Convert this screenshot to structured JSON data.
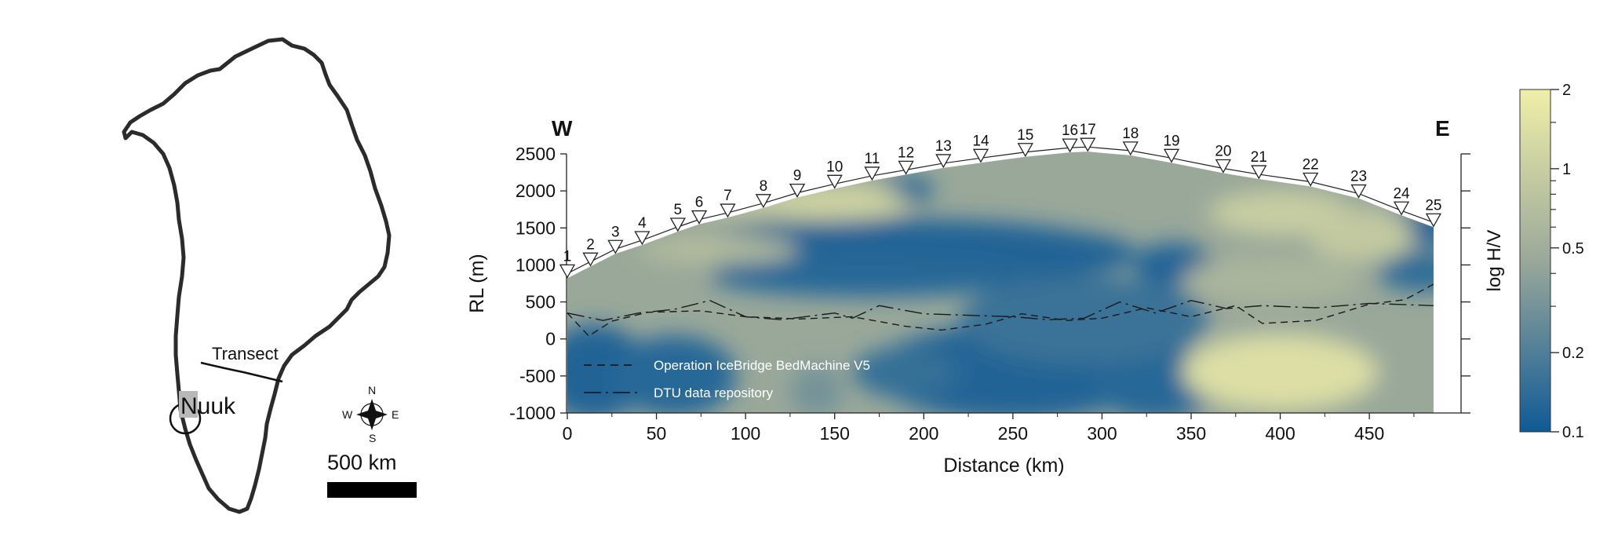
{
  "map": {
    "transect_label": "Transect",
    "city_label": "Nuuk",
    "scale_label": "500 km",
    "compass": {
      "n": "N",
      "s": "S",
      "e": "E",
      "w": "W"
    }
  },
  "chart_data": {
    "type": "heatmap",
    "xlabel": "Distance (km)",
    "ylabel": "RL (m)",
    "xlim": [
      0,
      490
    ],
    "ylim": [
      -1000,
      2500
    ],
    "xticks": [
      0,
      50,
      100,
      150,
      200,
      250,
      300,
      350,
      400,
      450
    ],
    "yticks": [
      2500,
      2000,
      1500,
      1000,
      500,
      0,
      -500,
      -1000
    ],
    "direction_left": "W",
    "direction_right": "E",
    "colorbar": {
      "label": "log H/V",
      "scale": "log",
      "range": [
        0.1,
        2
      ],
      "ticks": [
        2,
        1,
        0.5,
        0.2,
        0.1
      ],
      "colors": [
        "#0f5a96",
        "#9aa89a",
        "#f0efa8"
      ]
    },
    "stations": [
      {
        "label": "1",
        "x": 0,
        "z": 820
      },
      {
        "label": "2",
        "x": 13,
        "z": 980
      },
      {
        "label": "3",
        "x": 27,
        "z": 1150
      },
      {
        "label": "4",
        "x": 42,
        "z": 1270
      },
      {
        "label": "5",
        "x": 62,
        "z": 1450
      },
      {
        "label": "6",
        "x": 74,
        "z": 1550
      },
      {
        "label": "7",
        "x": 90,
        "z": 1640
      },
      {
        "label": "8",
        "x": 110,
        "z": 1770
      },
      {
        "label": "9",
        "x": 129,
        "z": 1910
      },
      {
        "label": "10",
        "x": 150,
        "z": 2030
      },
      {
        "label": "11",
        "x": 171,
        "z": 2140
      },
      {
        "label": "12",
        "x": 190,
        "z": 2220
      },
      {
        "label": "13",
        "x": 211,
        "z": 2310
      },
      {
        "label": "14",
        "x": 232,
        "z": 2380
      },
      {
        "label": "15",
        "x": 257,
        "z": 2460
      },
      {
        "label": "16",
        "x": 282,
        "z": 2520
      },
      {
        "label": "17",
        "x": 292,
        "z": 2530
      },
      {
        "label": "18",
        "x": 316,
        "z": 2480
      },
      {
        "label": "19",
        "x": 339,
        "z": 2380
      },
      {
        "label": "20",
        "x": 368,
        "z": 2240
      },
      {
        "label": "21",
        "x": 388,
        "z": 2160
      },
      {
        "label": "22",
        "x": 417,
        "z": 2060
      },
      {
        "label": "23",
        "x": 444,
        "z": 1900
      },
      {
        "label": "24",
        "x": 468,
        "z": 1670
      },
      {
        "label": "25",
        "x": 486,
        "z": 1510
      }
    ],
    "series": [
      {
        "name": "Operation IceBridge BedMachine V5",
        "style": "dashed",
        "x": [
          0,
          12,
          25,
          45,
          75,
          100,
          130,
          160,
          190,
          210,
          235,
          255,
          280,
          300,
          325,
          350,
          375,
          390,
          420,
          450,
          470,
          486
        ],
        "y": [
          350,
          40,
          240,
          360,
          380,
          300,
          270,
          300,
          170,
          120,
          200,
          340,
          250,
          280,
          420,
          300,
          450,
          210,
          250,
          470,
          530,
          740
        ]
      },
      {
        "name": "DTU data repository",
        "style": "dash-dot",
        "x": [
          0,
          20,
          40,
          60,
          80,
          100,
          120,
          150,
          160,
          175,
          200,
          225,
          250,
          270,
          290,
          310,
          330,
          350,
          370,
          390,
          420,
          450,
          486
        ],
        "y": [
          350,
          250,
          350,
          400,
          520,
          300,
          260,
          350,
          280,
          450,
          340,
          320,
          300,
          260,
          280,
          500,
          350,
          520,
          410,
          450,
          420,
          480,
          450
        ]
      }
    ],
    "anomalies": [
      {
        "x": 190,
        "z": 1200,
        "rx": 120,
        "rz": 420,
        "value": 0.12
      },
      {
        "x": 250,
        "z": 1150,
        "rx": 70,
        "rz": 350,
        "value": 0.12
      },
      {
        "x": 170,
        "z": 850,
        "rx": 90,
        "rz": 280,
        "value": 0.13
      },
      {
        "x": 190,
        "z": 2020,
        "rx": 16,
        "rz": 170,
        "value": 0.13
      },
      {
        "x": 340,
        "z": 1000,
        "rx": 22,
        "rz": 300,
        "value": 0.12
      },
      {
        "x": 475,
        "z": 1500,
        "rx": 28,
        "rz": 260,
        "value": 0.12
      },
      {
        "x": 480,
        "z": 900,
        "rx": 25,
        "rz": 260,
        "value": 0.14
      },
      {
        "x": 15,
        "z": -450,
        "rx": 30,
        "rz": 650,
        "value": 0.12
      },
      {
        "x": 60,
        "z": -500,
        "rx": 35,
        "rz": 550,
        "value": 0.13
      },
      {
        "x": 250,
        "z": -450,
        "rx": 80,
        "rz": 650,
        "value": 0.12
      },
      {
        "x": 330,
        "z": -600,
        "rx": 35,
        "rz": 500,
        "value": 0.13
      },
      {
        "x": 190,
        "z": -450,
        "rx": 30,
        "rz": 350,
        "value": 0.15
      },
      {
        "x": 290,
        "z": 250,
        "rx": 70,
        "rz": 600,
        "value": 0.16
      },
      {
        "x": 140,
        "z": -700,
        "rx": 15,
        "rz": 350,
        "value": 0.3
      },
      {
        "x": 100,
        "z": 1900,
        "rx": 35,
        "rz": 200,
        "value": 1.0
      },
      {
        "x": 150,
        "z": 1850,
        "rx": 40,
        "rz": 240,
        "value": 1.1
      },
      {
        "x": 85,
        "z": 1200,
        "rx": 45,
        "rz": 180,
        "value": 0.7
      },
      {
        "x": 400,
        "z": -450,
        "rx": 55,
        "rz": 520,
        "value": 1.4
      },
      {
        "x": 400,
        "z": 1700,
        "rx": 40,
        "rz": 300,
        "value": 1.0
      },
      {
        "x": 445,
        "z": 1400,
        "rx": 30,
        "rz": 350,
        "value": 0.9
      },
      {
        "x": 395,
        "z": 800,
        "rx": 50,
        "rz": 300,
        "value": 0.6
      }
    ]
  }
}
